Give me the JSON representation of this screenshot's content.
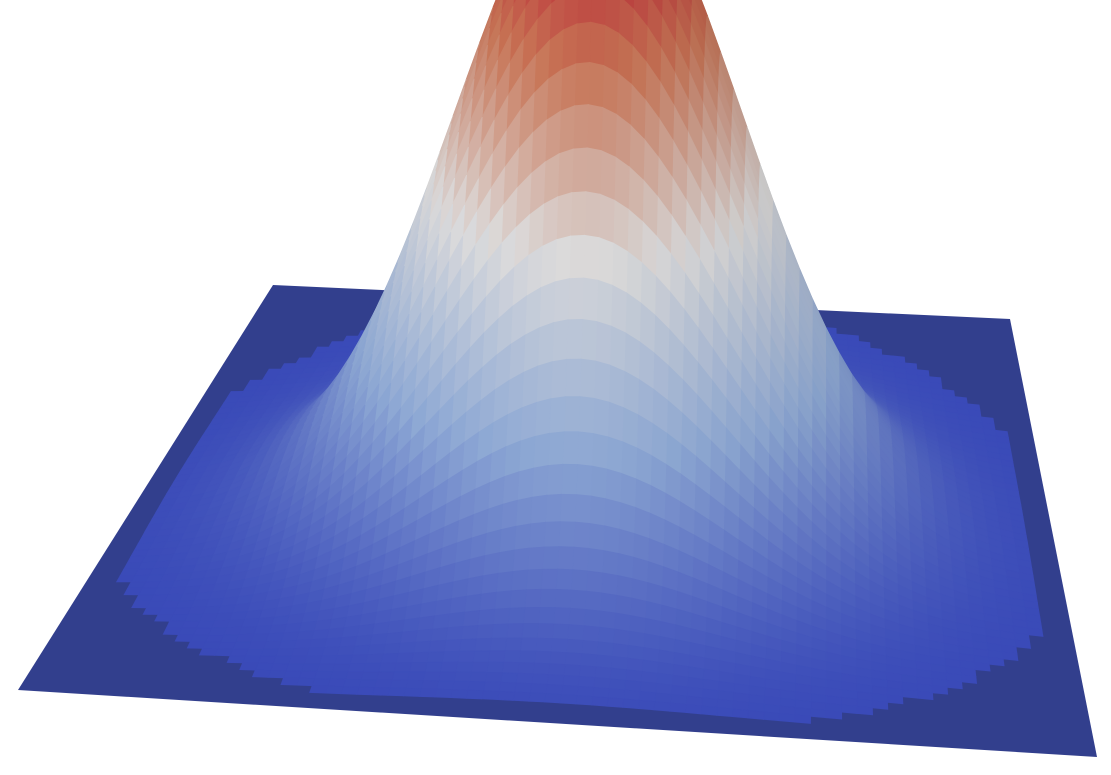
{
  "render": {
    "background_color": "#ffffff",
    "base_plane_color": "#323f8d",
    "colormap": [
      "#3b4cc0",
      "#8faad6",
      "#dddcdc",
      "#c87455",
      "#b40426"
    ],
    "surface": "gaussian",
    "plane_extent": 3.2,
    "peak_height": 1.0
  }
}
